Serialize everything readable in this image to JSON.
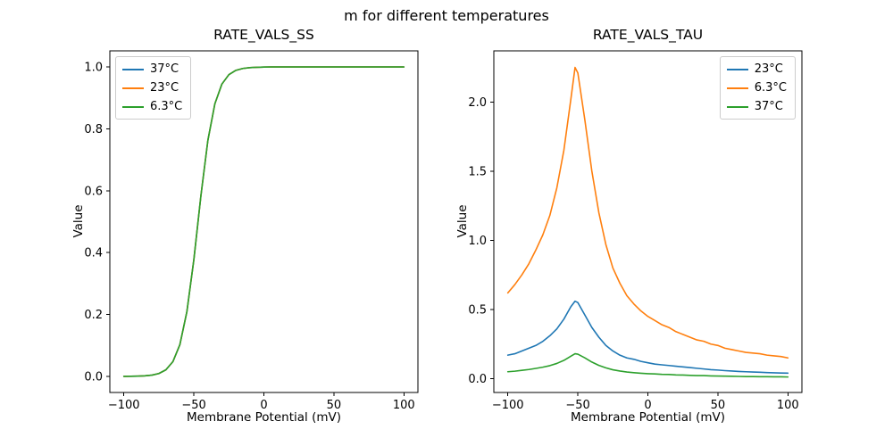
{
  "figure": {
    "title": "m for different temperatures",
    "background": "#ffffff"
  },
  "chart_data": [
    {
      "id": "ss",
      "type": "line",
      "title": "RATE_VALS_SS",
      "xlabel": "Membrane Potential (mV)",
      "ylabel": "Value",
      "legend_position": "upper-left",
      "xlim": [
        -110,
        110
      ],
      "ylim": [
        -0.052,
        1.052
      ],
      "xticks": {
        "values": [
          -100,
          -50,
          0,
          50,
          100
        ],
        "labels": [
          "−100",
          "−50",
          "0",
          "50",
          "100"
        ]
      },
      "yticks": {
        "values": [
          0.0,
          0.2,
          0.4,
          0.6,
          0.8,
          1.0
        ],
        "labels": [
          "0.0",
          "0.2",
          "0.4",
          "0.6",
          "0.8",
          "1.0"
        ]
      },
      "x": [
        -100,
        -95,
        -90,
        -85,
        -80,
        -75,
        -70,
        -65,
        -60,
        -55,
        -50,
        -45,
        -40,
        -35,
        -30,
        -25,
        -20,
        -15,
        -10,
        -5,
        0,
        5,
        10,
        15,
        20,
        25,
        30,
        35,
        40,
        45,
        50,
        55,
        60,
        65,
        70,
        75,
        80,
        85,
        90,
        95,
        100
      ],
      "series": [
        {
          "name": "37°C",
          "color": "#1f77b4",
          "values": [
            0.0001,
            0.0003,
            0.0008,
            0.0018,
            0.0041,
            0.0093,
            0.0212,
            0.0474,
            0.1024,
            0.2086,
            0.3775,
            0.5826,
            0.7625,
            0.8808,
            0.9444,
            0.9751,
            0.989,
            0.9951,
            0.9978,
            0.999,
            0.9996,
            0.9998,
            0.9999,
            1,
            1,
            1,
            1,
            1,
            1,
            1,
            1,
            1,
            1,
            1,
            1,
            1,
            1,
            1,
            1,
            1,
            1
          ]
        },
        {
          "name": "23°C",
          "color": "#ff7f0e",
          "values": [
            0.0001,
            0.0003,
            0.0008,
            0.0018,
            0.0041,
            0.0093,
            0.0212,
            0.0474,
            0.1024,
            0.2086,
            0.3775,
            0.5826,
            0.7625,
            0.8808,
            0.9444,
            0.9751,
            0.989,
            0.9951,
            0.9978,
            0.999,
            0.9996,
            0.9998,
            0.9999,
            1,
            1,
            1,
            1,
            1,
            1,
            1,
            1,
            1,
            1,
            1,
            1,
            1,
            1,
            1,
            1,
            1,
            1
          ]
        },
        {
          "name": "6.3°C",
          "color": "#2ca02c",
          "values": [
            0.0001,
            0.0003,
            0.0008,
            0.0018,
            0.0041,
            0.0093,
            0.0212,
            0.0474,
            0.1024,
            0.2086,
            0.3775,
            0.5826,
            0.7625,
            0.8808,
            0.9444,
            0.9751,
            0.989,
            0.9951,
            0.9978,
            0.999,
            0.9996,
            0.9998,
            0.9999,
            1,
            1,
            1,
            1,
            1,
            1,
            1,
            1,
            1,
            1,
            1,
            1,
            1,
            1,
            1,
            1,
            1,
            1
          ]
        }
      ]
    },
    {
      "id": "tau",
      "type": "line",
      "title": "RATE_VALS_TAU",
      "xlabel": "Membrane Potential (mV)",
      "ylabel": "Value",
      "legend_position": "upper-right",
      "xlim": [
        -110,
        110
      ],
      "ylim": [
        -0.1,
        2.37
      ],
      "xticks": {
        "values": [
          -100,
          -50,
          0,
          50,
          100
        ],
        "labels": [
          "−100",
          "−50",
          "0",
          "50",
          "100"
        ]
      },
      "yticks": {
        "values": [
          0.0,
          0.5,
          1.0,
          1.5,
          2.0
        ],
        "labels": [
          "0.0",
          "0.5",
          "1.0",
          "1.5",
          "2.0"
        ]
      },
      "x": [
        -100,
        -95,
        -90,
        -85,
        -80,
        -75,
        -70,
        -65,
        -60,
        -55,
        -52,
        -50,
        -45,
        -40,
        -35,
        -30,
        -25,
        -20,
        -15,
        -10,
        -5,
        0,
        5,
        10,
        15,
        20,
        25,
        30,
        35,
        40,
        45,
        50,
        55,
        60,
        65,
        70,
        75,
        80,
        85,
        90,
        95,
        100
      ],
      "series": [
        {
          "name": "23°C",
          "color": "#1f77b4",
          "values": [
            0.17,
            0.18,
            0.2,
            0.22,
            0.24,
            0.27,
            0.31,
            0.36,
            0.43,
            0.52,
            0.56,
            0.55,
            0.46,
            0.37,
            0.3,
            0.24,
            0.2,
            0.17,
            0.15,
            0.14,
            0.125,
            0.115,
            0.105,
            0.1,
            0.095,
            0.09,
            0.085,
            0.08,
            0.075,
            0.07,
            0.065,
            0.062,
            0.058,
            0.055,
            0.052,
            0.05,
            0.048,
            0.046,
            0.044,
            0.042,
            0.041,
            0.04
          ]
        },
        {
          "name": "6.3°C",
          "color": "#ff7f0e",
          "values": [
            0.62,
            0.68,
            0.75,
            0.83,
            0.93,
            1.04,
            1.18,
            1.38,
            1.65,
            2.02,
            2.25,
            2.21,
            1.87,
            1.5,
            1.2,
            0.97,
            0.8,
            0.69,
            0.6,
            0.54,
            0.49,
            0.45,
            0.42,
            0.39,
            0.37,
            0.34,
            0.32,
            0.3,
            0.28,
            0.27,
            0.25,
            0.24,
            0.22,
            0.21,
            0.2,
            0.19,
            0.185,
            0.18,
            0.17,
            0.165,
            0.16,
            0.15
          ]
        },
        {
          "name": "37°C",
          "color": "#2ca02c",
          "values": [
            0.05,
            0.054,
            0.06,
            0.066,
            0.074,
            0.083,
            0.094,
            0.11,
            0.132,
            0.162,
            0.18,
            0.177,
            0.15,
            0.12,
            0.096,
            0.078,
            0.064,
            0.055,
            0.048,
            0.043,
            0.039,
            0.036,
            0.034,
            0.031,
            0.03,
            0.027,
            0.026,
            0.024,
            0.022,
            0.022,
            0.02,
            0.019,
            0.018,
            0.017,
            0.016,
            0.015,
            0.015,
            0.014,
            0.014,
            0.013,
            0.013,
            0.012
          ]
        }
      ]
    }
  ]
}
